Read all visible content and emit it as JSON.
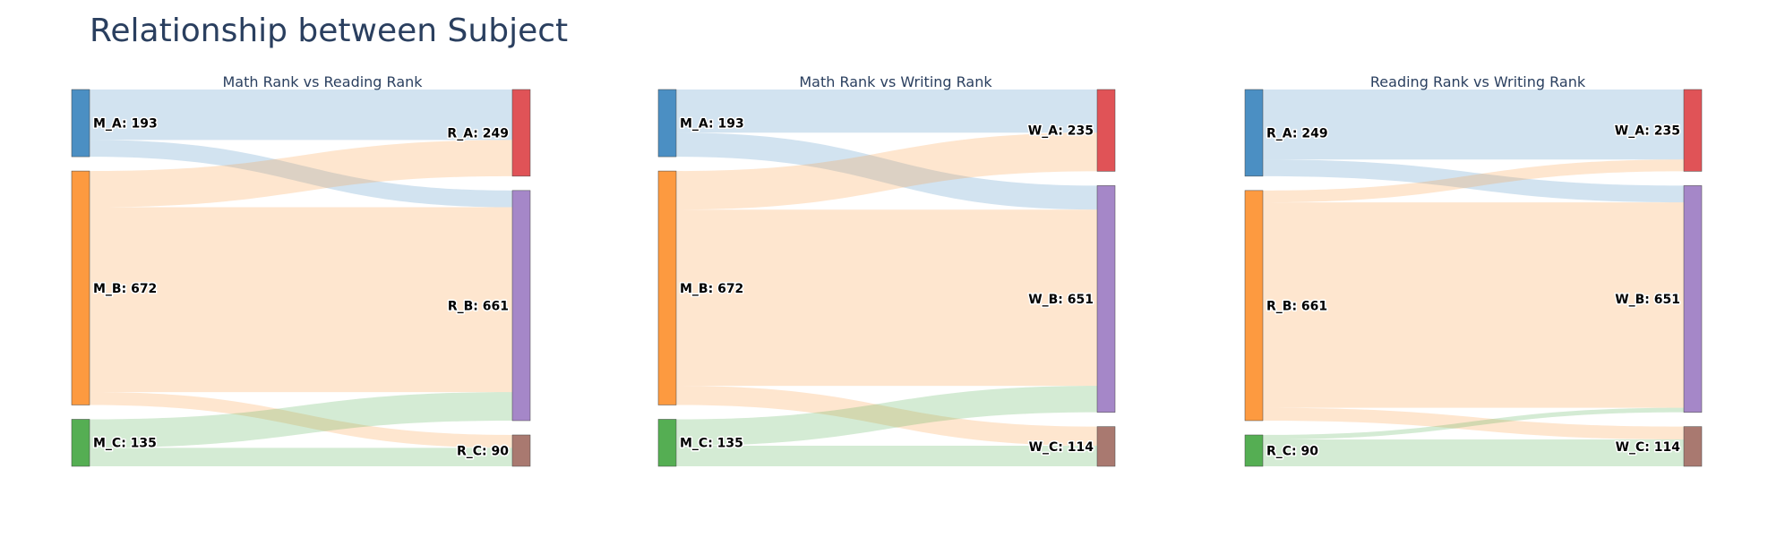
{
  "title": "Relationship between Subject",
  "chart_data": [
    {
      "type": "sankey",
      "title": "Math Rank vs Reading Rank",
      "sources": [
        {
          "name": "M_A",
          "label": "M_A: 193",
          "value": 193,
          "color": "#4b8fc3"
        },
        {
          "name": "M_B",
          "label": "M_B: 672",
          "value": 672,
          "color": "#fd9a40"
        },
        {
          "name": "M_C",
          "label": "M_C: 135",
          "value": 135,
          "color": "#55ae53"
        }
      ],
      "targets": [
        {
          "name": "R_A",
          "label": "R_A: 249",
          "value": 249,
          "color": "#e05357"
        },
        {
          "name": "R_B",
          "label": "R_B: 661",
          "value": 661,
          "color": "#a587c8"
        },
        {
          "name": "R_C",
          "label": "R_C: 90",
          "value": 90,
          "color": "#a97970"
        }
      ],
      "links": [
        {
          "source": 0,
          "target": 0,
          "value": 145
        },
        {
          "source": 0,
          "target": 1,
          "value": 48
        },
        {
          "source": 1,
          "target": 0,
          "value": 104
        },
        {
          "source": 1,
          "target": 1,
          "value": 531
        },
        {
          "source": 1,
          "target": 2,
          "value": 37
        },
        {
          "source": 2,
          "target": 1,
          "value": 82
        },
        {
          "source": 2,
          "target": 2,
          "value": 53
        }
      ]
    },
    {
      "type": "sankey",
      "title": "Math Rank vs Writing Rank",
      "sources": [
        {
          "name": "M_A",
          "label": "M_A: 193",
          "value": 193,
          "color": "#4b8fc3"
        },
        {
          "name": "M_B",
          "label": "M_B: 672",
          "value": 672,
          "color": "#fd9a40"
        },
        {
          "name": "M_C",
          "label": "M_C: 135",
          "value": 135,
          "color": "#55ae53"
        }
      ],
      "targets": [
        {
          "name": "W_A",
          "label": "W_A: 235",
          "value": 235,
          "color": "#e05357"
        },
        {
          "name": "W_B",
          "label": "W_B: 651",
          "value": 651,
          "color": "#a587c8"
        },
        {
          "name": "W_C",
          "label": "W_C: 114",
          "value": 114,
          "color": "#a97970"
        }
      ],
      "links": [
        {
          "source": 0,
          "target": 0,
          "value": 124
        },
        {
          "source": 0,
          "target": 1,
          "value": 69
        },
        {
          "source": 1,
          "target": 0,
          "value": 111
        },
        {
          "source": 1,
          "target": 1,
          "value": 506
        },
        {
          "source": 1,
          "target": 2,
          "value": 55
        },
        {
          "source": 2,
          "target": 1,
          "value": 76
        },
        {
          "source": 2,
          "target": 2,
          "value": 59
        }
      ]
    },
    {
      "type": "sankey",
      "title": "Reading Rank vs Writing Rank",
      "sources": [
        {
          "name": "R_A",
          "label": "R_A: 249",
          "value": 249,
          "color": "#4b8fc3"
        },
        {
          "name": "R_B",
          "label": "R_B: 661",
          "value": 661,
          "color": "#fd9a40"
        },
        {
          "name": "R_C",
          "label": "R_C: 90",
          "value": 90,
          "color": "#55ae53"
        }
      ],
      "targets": [
        {
          "name": "W_A",
          "label": "W_A: 235",
          "value": 235,
          "color": "#e05357"
        },
        {
          "name": "W_B",
          "label": "W_B: 651",
          "value": 651,
          "color": "#a587c8"
        },
        {
          "name": "W_C",
          "label": "W_C: 114",
          "value": 114,
          "color": "#a97970"
        }
      ],
      "links": [
        {
          "source": 0,
          "target": 0,
          "value": 201
        },
        {
          "source": 0,
          "target": 1,
          "value": 48
        },
        {
          "source": 1,
          "target": 0,
          "value": 34
        },
        {
          "source": 1,
          "target": 1,
          "value": 590
        },
        {
          "source": 1,
          "target": 2,
          "value": 37
        },
        {
          "source": 2,
          "target": 1,
          "value": 13
        },
        {
          "source": 2,
          "target": 2,
          "value": 77
        }
      ]
    }
  ]
}
